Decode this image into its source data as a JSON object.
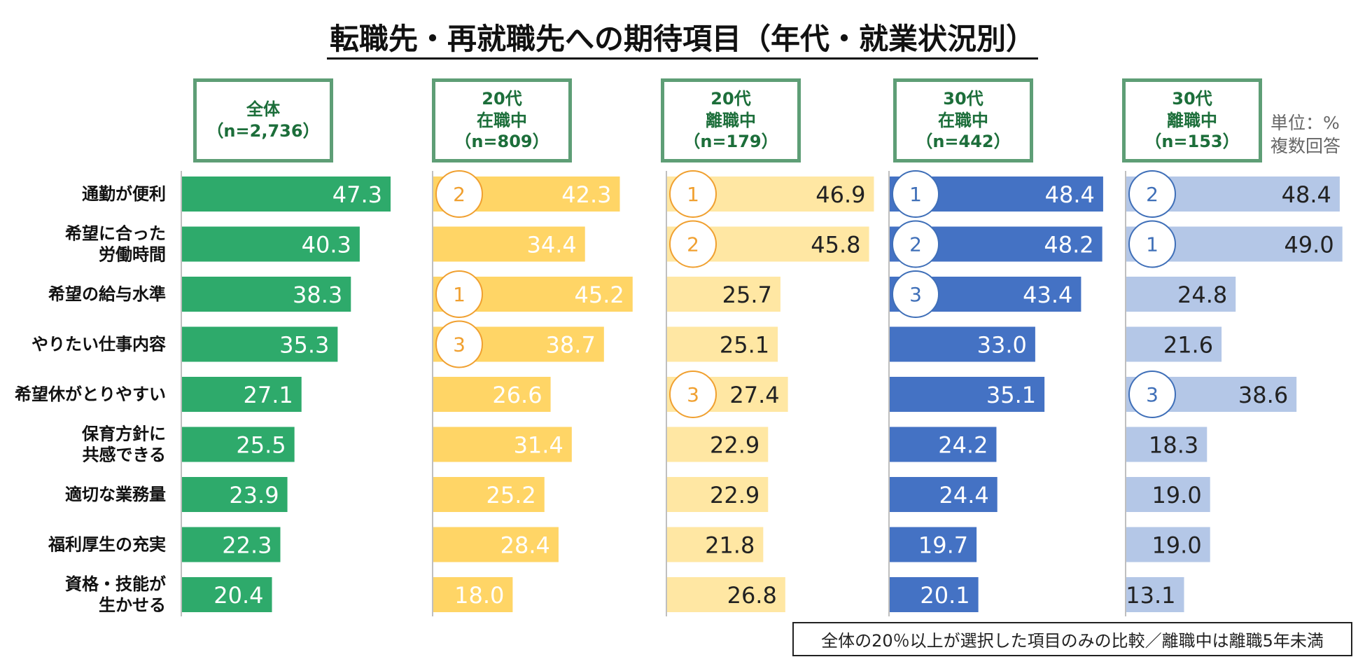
{
  "chart_data": {
    "type": "bar",
    "orientation": "horizontal",
    "title": "転職先・再就職先への期待項目（年代・就業状況別）",
    "unit_note": [
      "単位：%",
      "複数回答"
    ],
    "footnote": "全体の20％以上が選択した項目のみの比較／離職中は離職5年未満",
    "categories": [
      [
        "通勤が便利"
      ],
      [
        "希望に合った",
        "労働時間"
      ],
      [
        "希望の給与水準"
      ],
      [
        "やりたい仕事内容"
      ],
      [
        "希望休がとりやすい"
      ],
      [
        "保育方針に",
        "共感できる"
      ],
      [
        "適切な業務量"
      ],
      [
        "福利厚生の充実"
      ],
      [
        "資格・技能が",
        "生かせる"
      ]
    ],
    "series": [
      {
        "name": "全体",
        "header": [
          "全体",
          "（n=2,736）"
        ],
        "color": "#2eaa6b",
        "label_color": "#ffffff",
        "values": [
          47.3,
          40.3,
          38.3,
          35.3,
          27.1,
          25.5,
          23.9,
          22.3,
          20.4
        ],
        "ranks": [
          null,
          null,
          null,
          null,
          null,
          null,
          null,
          null,
          null
        ],
        "rank_color": ""
      },
      {
        "name": "20代在職中",
        "header": [
          "20代",
          "在職中",
          "（n=809）"
        ],
        "color": "#ffd566",
        "label_color": "#ffffff",
        "values": [
          42.3,
          34.4,
          45.2,
          38.7,
          26.6,
          31.4,
          25.2,
          28.4,
          18.0
        ],
        "ranks": [
          "2",
          null,
          "1",
          "3",
          null,
          null,
          null,
          null,
          null
        ],
        "rank_color": "#f0a030"
      },
      {
        "name": "20代離職中",
        "header": [
          "20代",
          "離職中",
          "（n=179）"
        ],
        "color": "#ffe7a3",
        "label_color": "#222222",
        "values": [
          46.9,
          45.8,
          25.7,
          25.1,
          27.4,
          22.9,
          22.9,
          21.8,
          26.8
        ],
        "ranks": [
          "1",
          "2",
          null,
          null,
          "3",
          null,
          null,
          null,
          null
        ],
        "rank_color": "#f0a030"
      },
      {
        "name": "30代在職中",
        "header": [
          "30代",
          "在職中",
          "（n=442）"
        ],
        "color": "#4472c4",
        "label_color": "#ffffff",
        "values": [
          48.4,
          48.2,
          43.4,
          33.0,
          35.1,
          24.2,
          24.4,
          19.7,
          20.1
        ],
        "ranks": [
          "1",
          "2",
          "3",
          null,
          null,
          null,
          null,
          null,
          null
        ],
        "rank_color": "#3f6fb8"
      },
      {
        "name": "30代離職中",
        "header": [
          "30代",
          "離職中",
          "（n=153）"
        ],
        "color": "#b4c7e7",
        "label_color": "#222222",
        "values": [
          48.4,
          49.0,
          24.8,
          21.6,
          38.6,
          18.3,
          19.0,
          19.0,
          13.1
        ],
        "ranks": [
          "2",
          "1",
          null,
          null,
          "3",
          null,
          null,
          null,
          null
        ],
        "rank_color": "#3f6fb8"
      }
    ]
  }
}
